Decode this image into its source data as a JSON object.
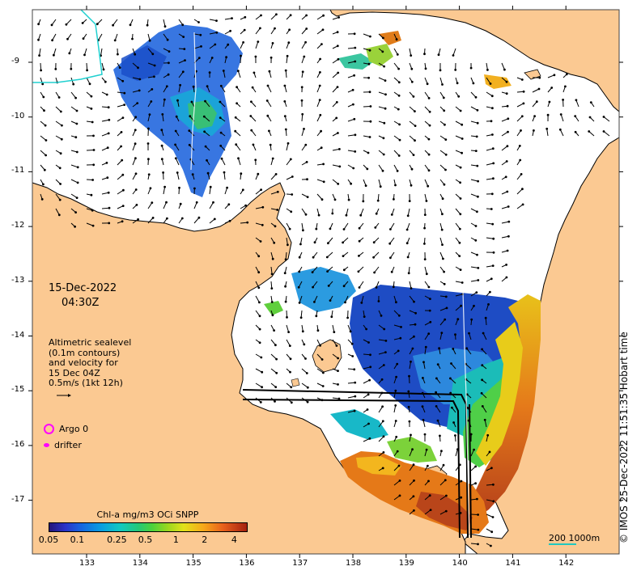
{
  "map": {
    "date": "15-Dec-2022",
    "time": "04:30Z",
    "alt_lines": [
      "Altimetric sealevel",
      "(0.1m contours)",
      "and velocity for",
      "15 Dec 04Z",
      "0.5m/s (1kt 12h)"
    ],
    "legend": {
      "argo_label": "Argo 0",
      "drifter_label": "drifter"
    },
    "colorbar": {
      "title": "Chl-a mg/m3 OCi SNPP",
      "ticks": [
        {
          "label": "0.05",
          "frac": 0.0
        },
        {
          "label": "0.1",
          "frac": 0.145
        },
        {
          "label": "0.25",
          "frac": 0.346
        },
        {
          "label": "0.5",
          "frac": 0.49
        },
        {
          "label": "1",
          "frac": 0.645
        },
        {
          "label": "2",
          "frac": 0.79
        },
        {
          "label": "4",
          "frac": 0.94
        }
      ]
    },
    "x_ticks": [
      "133",
      "134",
      "135",
      "136",
      "137",
      "138",
      "139",
      "140",
      "141",
      "142"
    ],
    "y_ticks": [
      "-9",
      "-10",
      "-11",
      "-12",
      "-13",
      "-14",
      "-15",
      "-16",
      "-17"
    ],
    "scale_label": "200  1000m",
    "copyright": "© IMOS 25-Dec-2022 11:51:35 Hobart time",
    "colors": {
      "land": "#fbc992",
      "sea": "#ffffff",
      "coast": "#000000",
      "legend_marker": "#ff00ff",
      "scale_bar": "#20c8c0"
    }
  }
}
